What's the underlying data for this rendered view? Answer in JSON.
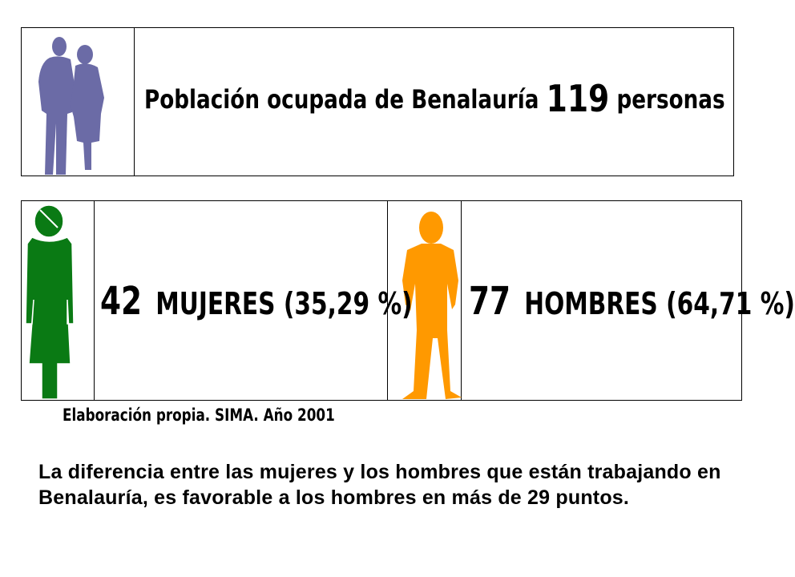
{
  "header": {
    "title_prefix": "Población ocupada de Benalauría",
    "total": "119",
    "title_suffix": "personas",
    "icon": "couple-silhouette-icon"
  },
  "women": {
    "count": "42",
    "label": "MUJERES (35,29 %)",
    "icon": "woman-figure-icon",
    "color": "#0a7a14"
  },
  "men": {
    "count": "77",
    "label": "HOMBRES (64,71 %)",
    "icon": "man-figure-icon",
    "color": "#ff9900"
  },
  "couple_color": "#6b6ba6",
  "source": "Elaboración propia. SIMA. Año 2001",
  "summary": "La diferencia entre las mujeres y los hombres que están trabajando en Benalauría, es favorable a los hombres en más de 29 puntos."
}
